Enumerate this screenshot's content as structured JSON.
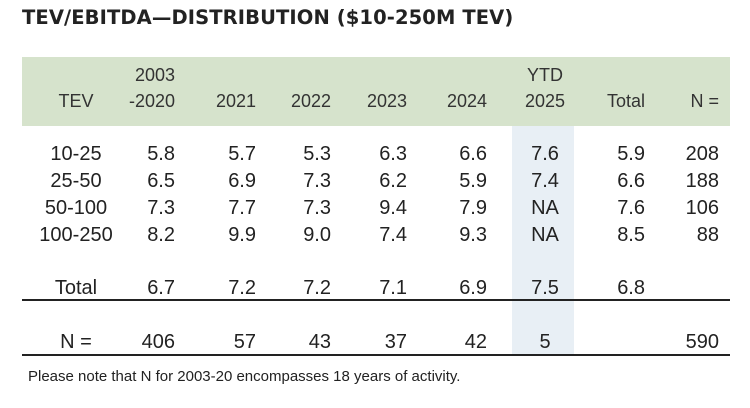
{
  "title": "TEV/EBITDA—DISTRIBUTION ($10-250M TEV)",
  "columns": [
    {
      "key": "tev",
      "line1": "",
      "line2": "TEV"
    },
    {
      "key": "y2003",
      "line1": "2003",
      "line2": "-2020"
    },
    {
      "key": "y2021",
      "line1": "",
      "line2": "2021"
    },
    {
      "key": "y2022",
      "line1": "",
      "line2": "2022"
    },
    {
      "key": "y2023",
      "line1": "",
      "line2": "2023"
    },
    {
      "key": "y2024",
      "line1": "",
      "line2": "2024"
    },
    {
      "key": "ytd2025",
      "line1": "YTD",
      "line2": "2025"
    },
    {
      "key": "total",
      "line1": "",
      "line2": "Total"
    },
    {
      "key": "n",
      "line1": "",
      "line2": "N ="
    }
  ],
  "rows": [
    [
      "10-25",
      "5.8",
      "5.7",
      "5.3",
      "6.3",
      "6.6",
      "7.6",
      "5.9",
      "208"
    ],
    [
      "25-50",
      "6.5",
      "6.9",
      "7.3",
      "6.2",
      "5.9",
      "7.4",
      "6.6",
      "188"
    ],
    [
      "50-100",
      "7.3",
      "7.7",
      "7.3",
      "9.4",
      "7.9",
      "NA",
      "7.6",
      "106"
    ],
    [
      "100-250",
      "8.2",
      "9.9",
      "9.0",
      "7.4",
      "9.3",
      "NA",
      "8.5",
      "88"
    ]
  ],
  "total_row": [
    "Total",
    "6.7",
    "7.2",
    "7.2",
    "7.1",
    "6.9",
    "7.5",
    "6.8",
    ""
  ],
  "n_row": [
    "N =",
    "406",
    "57",
    "43",
    "37",
    "42",
    "5",
    "",
    "590"
  ],
  "footnote": "Please note that N for 2003-20 encompasses 18 years of activity.",
  "colors": {
    "header_background": "#d6e3cc",
    "ytd_highlight": "#e8eff5",
    "text": "#222222",
    "rule": "#222222"
  }
}
